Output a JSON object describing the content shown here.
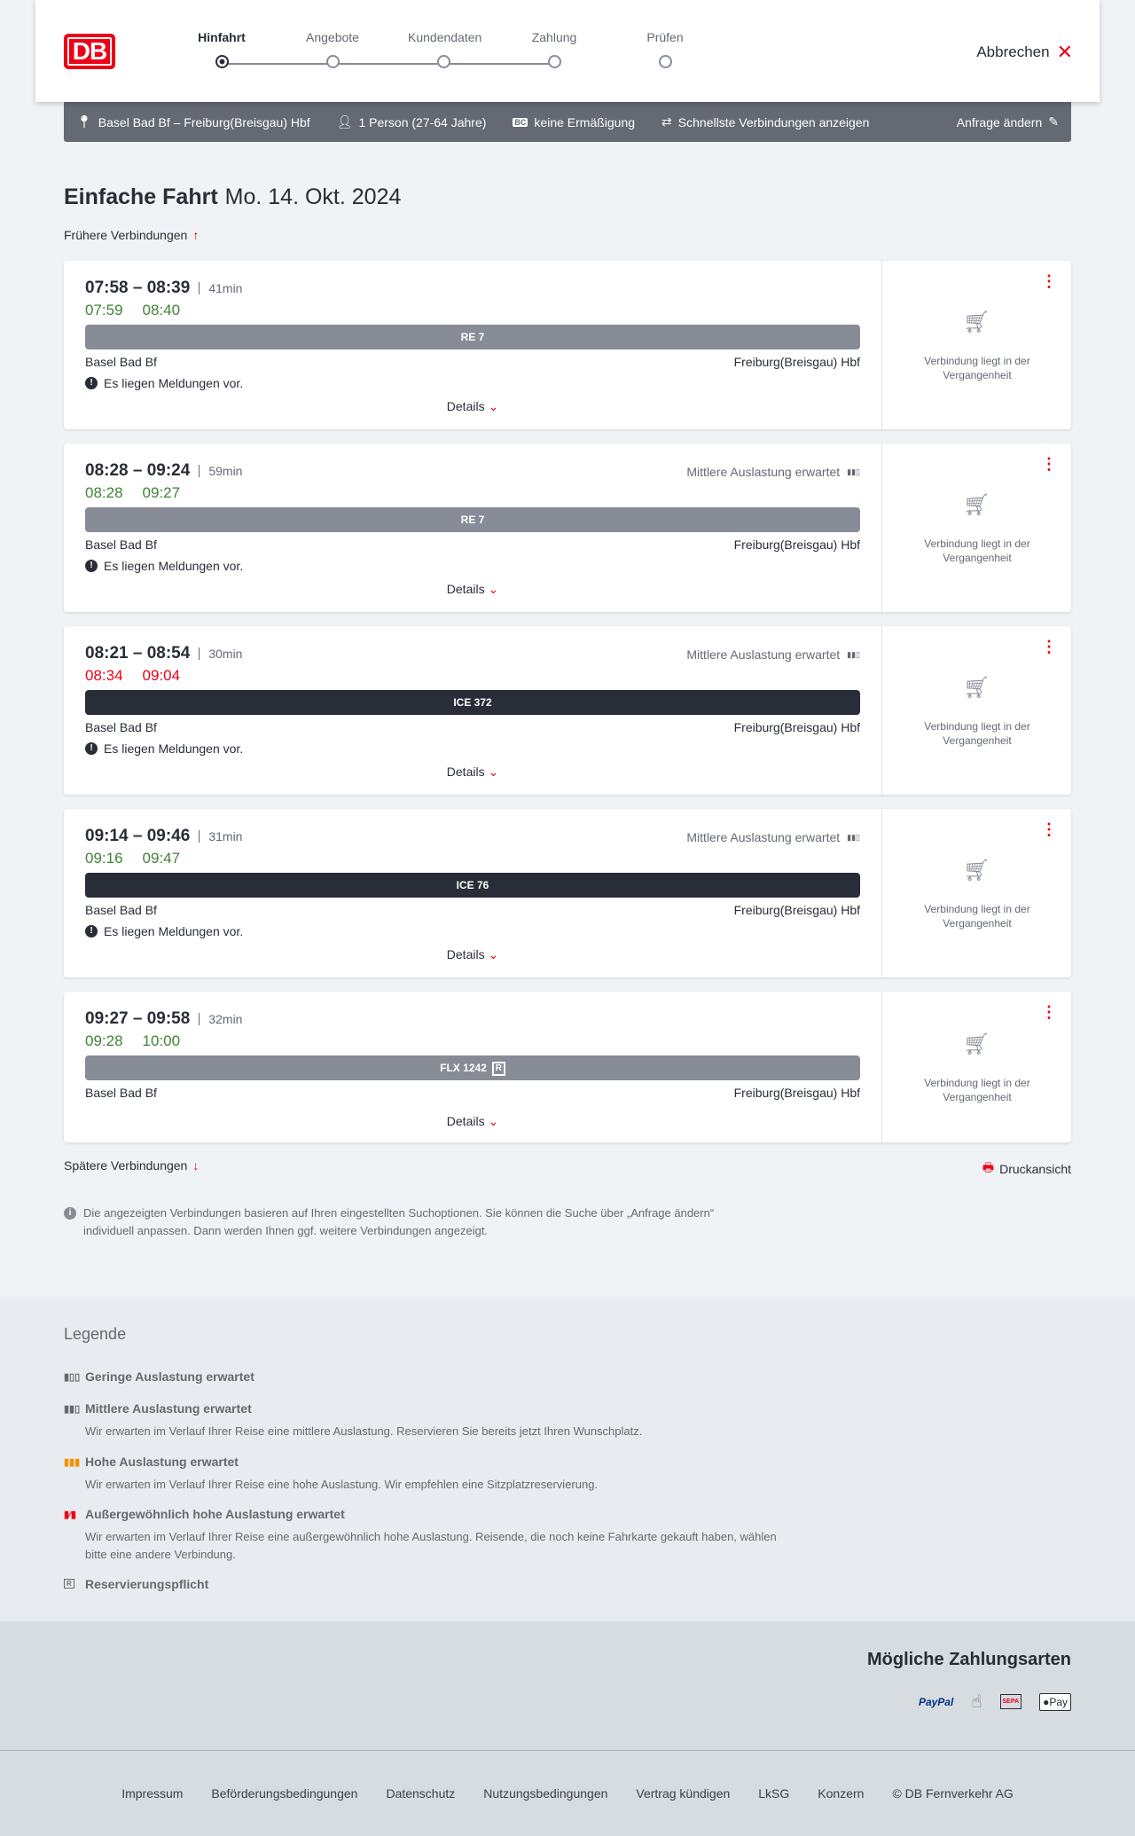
{
  "header": {
    "logo": "DB",
    "steps": [
      "Hinfahrt",
      "Angebote",
      "Kundendaten",
      "Zahlung",
      "Prüfen"
    ],
    "active_step": 0,
    "cancel": "Abbrechen"
  },
  "infobar": {
    "route": "Basel Bad Bf – Freiburg(Breisgau) Hbf",
    "persons": "1 Person (27-64 Jahre)",
    "discount_badge": "BC",
    "discount": "keine Ermäßigung",
    "fastest": "Schnellste Verbindungen anzeigen",
    "edit": "Anfrage ändern"
  },
  "page": {
    "title": "Einfache Fahrt",
    "date": "Mo. 14. Okt. 2024",
    "earlier": "Frühere Verbindungen",
    "later": "Spätere Verbindungen",
    "print": "Druckansicht",
    "note": "Die angezeigten Verbindungen basieren auf Ihren eingestellten Suchoptionen. Sie können die Suche über „Anfrage ändern“ individuell anpassen. Dann werden Ihnen ggf. weitere Verbindungen angezeigt."
  },
  "connections": [
    {
      "times": "07:58 – 08:39",
      "duration": "41min",
      "rt_dep": "07:59",
      "rt_arr": "08:40",
      "rt_late": false,
      "train": "RE 7",
      "bar": "grey",
      "from": "Basel Bad Bf",
      "to": "Freiburg(Breisgau) Hbf",
      "message": "Es liegen Meldungen vor.",
      "load": "",
      "details": "Details",
      "status": "Verbindung liegt in der Vergangenheit"
    },
    {
      "times": "08:28 – 09:24",
      "duration": "59min",
      "rt_dep": "08:28",
      "rt_arr": "09:27",
      "rt_late": false,
      "train": "RE 7",
      "bar": "grey",
      "from": "Basel Bad Bf",
      "to": "Freiburg(Breisgau) Hbf",
      "message": "Es liegen Meldungen vor.",
      "load": "Mittlere Auslastung erwartet",
      "details": "Details",
      "status": "Verbindung liegt in der Vergangenheit"
    },
    {
      "times": "08:21 – 08:54",
      "duration": "30min",
      "rt_dep": "08:34",
      "rt_arr": "09:04",
      "rt_late": true,
      "train": "ICE 372",
      "bar": "dark",
      "from": "Basel Bad Bf",
      "to": "Freiburg(Breisgau) Hbf",
      "message": "Es liegen Meldungen vor.",
      "load": "Mittlere Auslastung erwartet",
      "details": "Details",
      "status": "Verbindung liegt in der Vergangenheit"
    },
    {
      "times": "09:14 – 09:46",
      "duration": "31min",
      "rt_dep": "09:16",
      "rt_arr": "09:47",
      "rt_late": false,
      "train": "ICE 76",
      "bar": "dark",
      "from": "Basel Bad Bf",
      "to": "Freiburg(Breisgau) Hbf",
      "message": "Es liegen Meldungen vor.",
      "load": "Mittlere Auslastung erwartet",
      "details": "Details",
      "status": "Verbindung liegt in der Vergangenheit"
    },
    {
      "times": "09:27 – 09:58",
      "duration": "32min",
      "rt_dep": "09:28",
      "rt_arr": "10:00",
      "rt_late": false,
      "train": "FLX 1242",
      "reservation": "R",
      "bar": "grey",
      "from": "Basel Bad Bf",
      "to": "Freiburg(Breisgau) Hbf",
      "message": "",
      "load": "",
      "details": "Details",
      "status": "Verbindung liegt in der Vergangenheit"
    }
  ],
  "legend": {
    "title": "Legende",
    "items": [
      {
        "title": "Geringe Auslastung erwartet",
        "text": ""
      },
      {
        "title": "Mittlere Auslastung erwartet",
        "text": "Wir erwarten im Verlauf Ihrer Reise eine mittlere Auslastung. Reservieren Sie bereits jetzt Ihren Wunschplatz."
      },
      {
        "title": "Hohe Auslastung erwartet",
        "text": "Wir erwarten im Verlauf Ihrer Reise eine hohe Auslastung. Wir empfehlen eine Sitzplatzreservierung."
      },
      {
        "title": "Außergewöhnlich hohe Auslastung erwartet",
        "text": "Wir erwarten im Verlauf Ihrer Reise eine außergewöhnlich hohe Auslastung. Reisende, die noch keine Fahrkarte gekauft haben, wählen bitte eine andere Verbindung."
      },
      {
        "title": "Reservierungspflicht",
        "text": ""
      }
    ]
  },
  "payment": {
    "title": "Mögliche Zahlungsarten",
    "methods": [
      "PayPal",
      "SEPA",
      "Pay"
    ]
  },
  "footer": {
    "links": [
      "Impressum",
      "Beförderungsbedingungen",
      "Datenschutz",
      "Nutzungsbedingungen",
      "Vertrag kündigen",
      "LkSG",
      "Konzern",
      "© DB Fernverkehr AG"
    ]
  },
  "colors": {
    "brand": "#ec0016",
    "on_time": "#408335",
    "bar_regional": "#878c96",
    "bar_longdistance": "#282d37",
    "high_load": "#f39200"
  }
}
